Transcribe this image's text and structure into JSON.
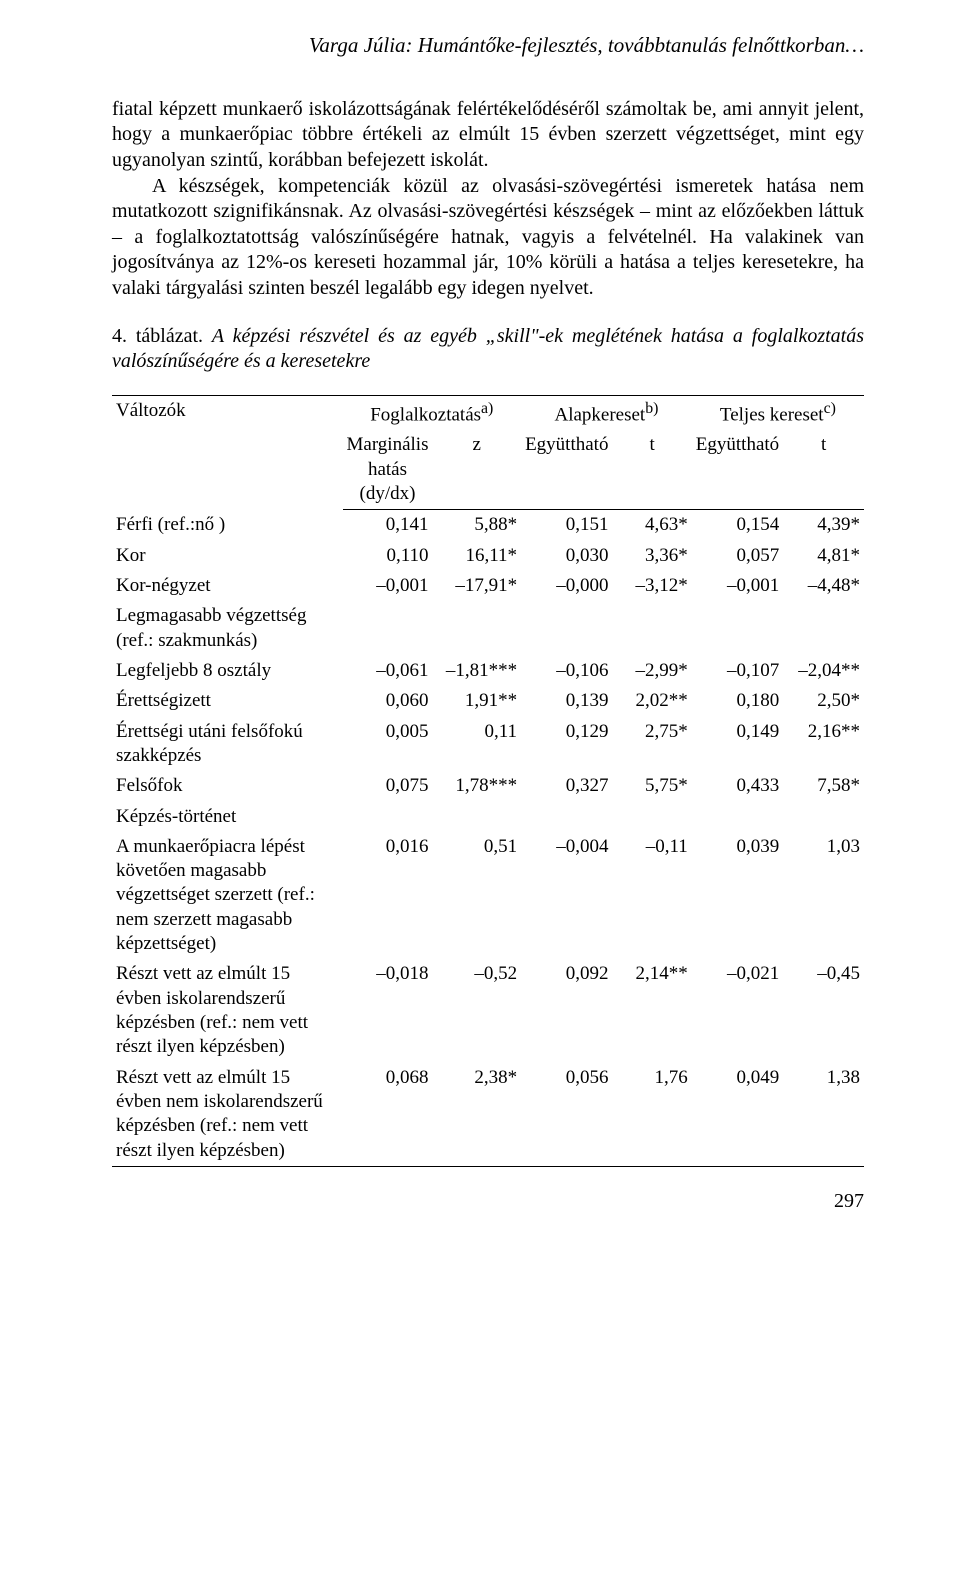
{
  "running_head": "Varga Júlia: Humántőke-fejlesztés, továbbtanulás felnőttkorban…",
  "paragraph": "fiatal képzett munkaerő iskolázottságának felértékelődéséről számoltak be, ami annyit jelent, hogy a munkaerőpiac többre értékeli az elmúlt 15 évben szerzett végzettséget, mint egy ugyanolyan szintű, korábban befejezett iskolát.\nA készségek, kompetenciák közül az olvasási-szövegértési ismeretek hatása nem mutatkozott szignifikánsnak. Az olvasási-szövegértési készségek – mint az előzőekben láttuk – a foglalkoztatottság valószínűségére hatnak, vagyis a felvételnél. Ha valakinek van jogosítványa az 12%-os kereseti hozammal jár, 10% körüli a hatása a teljes keresetekre, ha valaki tárgyalási szinten beszél legalább egy idegen nyelvet.",
  "caption_lead": "4. táblázat.",
  "caption_rest": "A képzési részvétel és az egyéb „skill\"-ek meglétének hatása a foglalkoztatás valószínűségére és a keresetekre",
  "headers": {
    "vars": "Változók",
    "group_fog": "Foglalkoztatás",
    "group_fog_sup": "a)",
    "group_alap": "Alapkereset",
    "group_alap_sup": "b)",
    "group_teljes": "Teljes kereset",
    "group_teljes_sup": "c)",
    "marg": "Marginális hatás (dy/dx)",
    "z": "z",
    "egy": "Együttható",
    "t": "t"
  },
  "rows": [
    {
      "label": "Férfi (ref.:nő )",
      "c": [
        "0,141",
        "5,88*",
        "0,151",
        "4,63*",
        "0,154",
        "4,39*"
      ],
      "section": false
    },
    {
      "label": "Kor",
      "c": [
        "0,110",
        "16,11*",
        "0,030",
        "3,36*",
        "0,057",
        "4,81*"
      ],
      "section": false
    },
    {
      "label": "Kor-négyzet",
      "c": [
        "–0,001",
        "–17,91*",
        "–0,000",
        "–3,12*",
        "–0,001",
        "–4,48*"
      ],
      "section": false
    },
    {
      "label": "Legmagasabb végzettség (ref.: szakmunkás)",
      "c": [
        "",
        "",
        "",
        "",
        "",
        ""
      ],
      "section": true
    },
    {
      "label": "Legfeljebb 8 osztály",
      "c": [
        "–0,061",
        "–1,81***",
        "–0,106",
        "–2,99*",
        "–0,107",
        "–2,04**"
      ],
      "section": false
    },
    {
      "label": "Érettségizett",
      "c": [
        "0,060",
        "1,91**",
        "0,139",
        "2,02**",
        "0,180",
        "2,50*"
      ],
      "section": false
    },
    {
      "label": "Érettségi utáni felsőfokú szakképzés",
      "c": [
        "0,005",
        "0,11",
        "0,129",
        "2,75*",
        "0,149",
        "2,16**"
      ],
      "section": false
    },
    {
      "label": "Felsőfok",
      "c": [
        "0,075",
        "1,78***",
        "0,327",
        "5,75*",
        "0,433",
        "7,58*"
      ],
      "section": false
    },
    {
      "label": "Képzés-történet",
      "c": [
        "",
        "",
        "",
        "",
        "",
        ""
      ],
      "section": true
    },
    {
      "label": "A munkaerőpiacra lépést követően magasabb végzettséget szerzett (ref.: nem szerzett magasabb képzettséget)",
      "c": [
        "0,016",
        "0,51",
        "–0,004",
        "–0,11",
        "0,039",
        "1,03"
      ],
      "section": false
    },
    {
      "label": "Részt vett az elmúlt 15 évben iskolarendszerű képzésben (ref.: nem vett részt ilyen képzésben)",
      "c": [
        "–0,018",
        "–0,52",
        "0,092",
        "2,14**",
        "–0,021",
        "–0,45"
      ],
      "section": false
    },
    {
      "label": "Részt vett az elmúlt 15 évben nem iskolarendszerű képzésben (ref.: nem vett részt ilyen képzésben)",
      "c": [
        "0,068",
        "2,38*",
        "0,056",
        "1,76",
        "0,049",
        "1,38"
      ],
      "section": false
    }
  ],
  "col_widths_pct": [
    33,
    11,
    12,
    11,
    11,
    11,
    11
  ],
  "page_number": "297"
}
